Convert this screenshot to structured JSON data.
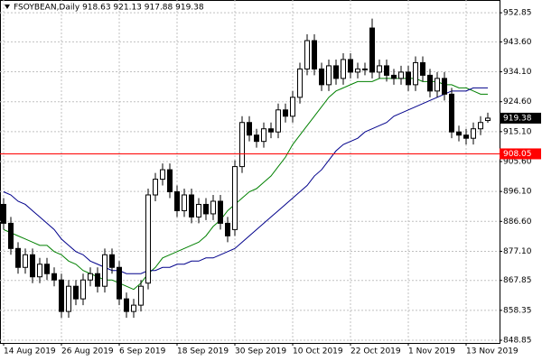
{
  "chart_data": {
    "type": "candlestick",
    "title": "FSOYBEAN,Daily  918.63 921.13 917.88 919.38",
    "categories": [
      "14 Aug 2019",
      null,
      null,
      null,
      null,
      null,
      null,
      null,
      "26 Aug 2019",
      null,
      null,
      null,
      null,
      null,
      null,
      null,
      "6 Sep 2019",
      null,
      null,
      null,
      null,
      null,
      null,
      null,
      "18 Sep 2019",
      null,
      null,
      null,
      null,
      null,
      null,
      null,
      "30 Sep 2019",
      null,
      null,
      null,
      null,
      null,
      null,
      null,
      "10 Oct 2019",
      null,
      null,
      null,
      null,
      null,
      null,
      null,
      "22 Oct 2019",
      null,
      null,
      null,
      null,
      null,
      null,
      null,
      "1 Nov 2019",
      null,
      null,
      null,
      null,
      null,
      null,
      null,
      "13 Nov 2019",
      null,
      null,
      null
    ],
    "open": [
      892,
      886,
      878,
      872,
      876,
      869,
      873,
      870,
      868,
      858,
      866,
      862,
      868,
      870,
      866,
      876,
      872,
      862,
      858,
      860,
      867,
      895,
      900,
      903,
      896,
      890,
      895,
      888,
      892,
      889,
      893,
      886,
      884,
      904,
      918,
      914,
      912,
      916,
      915,
      922,
      920,
      926,
      935,
      944,
      935,
      930,
      936,
      932,
      938,
      934,
      935,
      948,
      934,
      936,
      933,
      932,
      934,
      930,
      937,
      933,
      928,
      932,
      927,
      915,
      914,
      913,
      916,
      918.63
    ],
    "high": [
      894,
      888,
      880,
      878,
      878,
      875,
      875,
      872,
      870,
      868,
      868,
      870,
      872,
      872,
      878,
      878,
      874,
      864,
      862,
      868,
      897,
      902,
      905,
      905,
      898,
      897,
      897,
      894,
      894,
      895,
      895,
      888,
      906,
      920,
      920,
      916,
      918,
      918,
      924,
      924,
      928,
      937,
      946,
      946,
      937,
      938,
      938,
      940,
      940,
      937,
      937,
      951,
      938,
      938,
      935,
      936,
      936,
      939,
      939,
      935,
      934,
      934,
      929,
      917,
      916,
      918,
      920,
      921.13
    ],
    "low": [
      884,
      876,
      870,
      870,
      867,
      867,
      868,
      866,
      856,
      856,
      860,
      860,
      866,
      864,
      864,
      870,
      860,
      856,
      856,
      858,
      865,
      893,
      898,
      894,
      888,
      888,
      886,
      886,
      887,
      887,
      884,
      880,
      882,
      902,
      912,
      910,
      910,
      913,
      913,
      918,
      918,
      924,
      933,
      933,
      928,
      928,
      930,
      930,
      932,
      932,
      933,
      932,
      932,
      931,
      930,
      930,
      928,
      928,
      931,
      926,
      926,
      925,
      913,
      912,
      911,
      911,
      914,
      917.88
    ],
    "close": [
      886,
      878,
      872,
      876,
      869,
      873,
      870,
      868,
      858,
      866,
      862,
      868,
      870,
      866,
      876,
      872,
      862,
      858,
      860,
      866,
      895,
      900,
      903,
      896,
      890,
      895,
      888,
      892,
      889,
      893,
      886,
      882,
      904,
      918,
      914,
      912,
      916,
      915,
      922,
      920,
      926,
      935,
      944,
      935,
      930,
      936,
      932,
      938,
      934,
      935,
      935,
      934,
      936,
      933,
      932,
      934,
      930,
      937,
      933,
      928,
      932,
      927,
      915,
      914,
      913,
      916,
      918,
      919.38
    ],
    "up_color": "#ffffff",
    "down_color": "#000000",
    "lines": [
      {
        "color": "#008000",
        "values": [
          884,
          883,
          882,
          881,
          880,
          879,
          879,
          877,
          876,
          874,
          873,
          871,
          870,
          869,
          868,
          868,
          867,
          866,
          865,
          867,
          870,
          872,
          875,
          876,
          877,
          878,
          879,
          880,
          882,
          885,
          887,
          890,
          892,
          894,
          896,
          897,
          899,
          901,
          904,
          907,
          911,
          914,
          917,
          920,
          923,
          926,
          928,
          929,
          930,
          931,
          931,
          931,
          932,
          932,
          932,
          932,
          932,
          932,
          931,
          931,
          931,
          930,
          930,
          929,
          929,
          928,
          927,
          927
        ]
      },
      {
        "color": "#00008b",
        "values": [
          896,
          895,
          893,
          892,
          890,
          888,
          886,
          884,
          881,
          879,
          877,
          876,
          874,
          873,
          872,
          871,
          871,
          870,
          870,
          870,
          871,
          871,
          872,
          872,
          873,
          873,
          874,
          874,
          875,
          875,
          876,
          877,
          878,
          880,
          882,
          884,
          886,
          888,
          890,
          892,
          894,
          896,
          898,
          901,
          903,
          906,
          909,
          911,
          912,
          913,
          915,
          916,
          917,
          918,
          920,
          921,
          922,
          923,
          924,
          925,
          926,
          927,
          928,
          928,
          928,
          929,
          929,
          929
        ]
      }
    ],
    "level": {
      "value": 908.05,
      "color": "#ff0000"
    },
    "ylim": [
      848.0,
      956.9
    ],
    "yticks": [
      952.85,
      {
        "value": 943.6,
        "label": "943.60"
      },
      {
        "value": 934.1,
        "label": "934.10"
      },
      {
        "value": 924.6,
        "label": "924.60"
      },
      {
        "value": 915.1,
        "label": "915.10"
      },
      {
        "value": 905.6,
        "label": "905.60"
      },
      {
        "value": 896.1,
        "label": "896.10"
      },
      {
        "value": 886.6,
        "label": "886.60"
      },
      {
        "value": 877.1,
        "label": "877.10"
      },
      867.85,
      858.35,
      848.85
    ],
    "grid": true
  }
}
